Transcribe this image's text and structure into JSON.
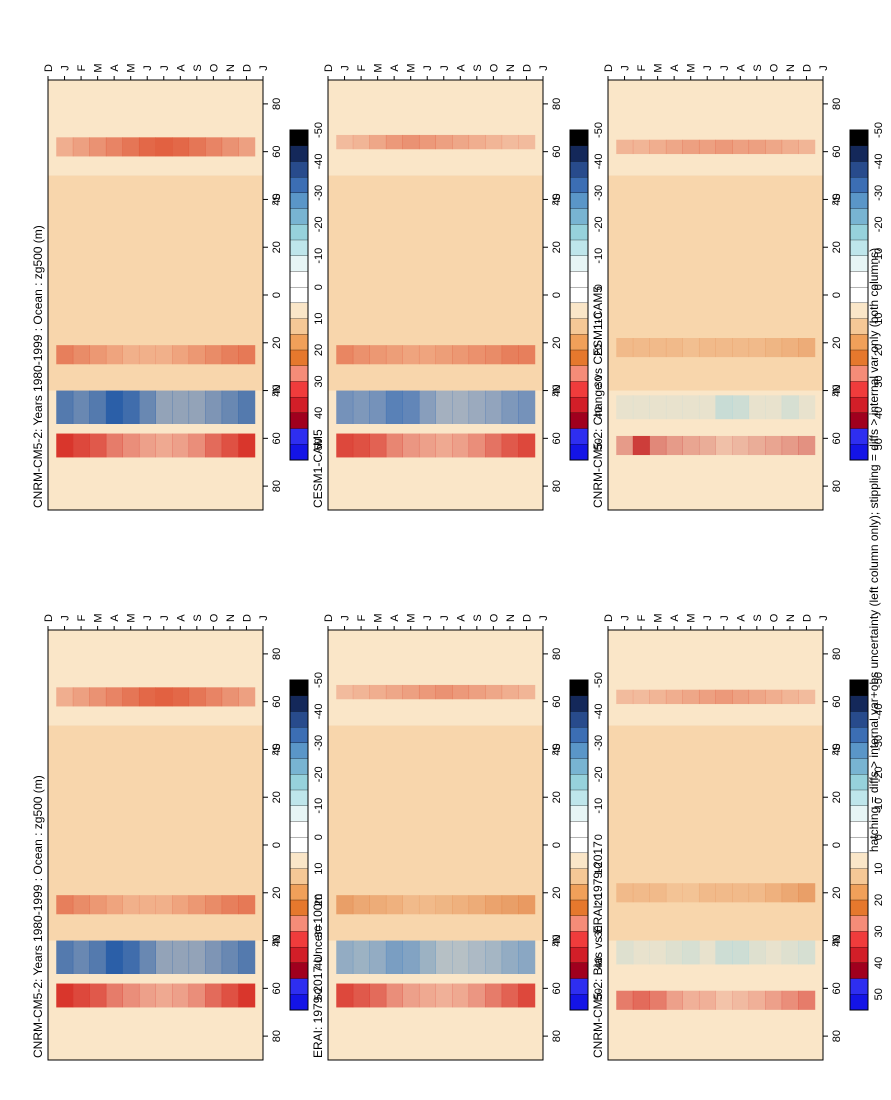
{
  "footnote": "hatching = diffs > internal var+obs uncertainty (left column only); stippling = diffs > internal var only (both columns)",
  "chart_data": {
    "type": "heatmap",
    "orientation_note_visible": "page is rotated 90 degrees; months run along the long axis",
    "months": [
      "D",
      "J",
      "F",
      "M",
      "A",
      "M",
      "J",
      "J",
      "A",
      "S",
      "O",
      "N",
      "D",
      "J"
    ],
    "lat_ticks": [
      "80",
      "60",
      "40",
      "20",
      "0",
      "20",
      "40",
      "60",
      "80"
    ],
    "lat_hemisphere_labels": [
      "°N",
      "°S"
    ],
    "colorbar_labels": [
      "50",
      "40",
      "30",
      "20",
      "10",
      "0",
      "-10",
      "-20",
      "-30",
      "-40",
      "-50"
    ],
    "colorbar_colors": [
      "#1414e6",
      "#2e2ef0",
      "#a0001e",
      "#d21e28",
      "#f03c3c",
      "#f58c78",
      "#e6782d",
      "#f0a05a",
      "#f5c896",
      "#fae6c8",
      "#ffffff",
      "#ffffff",
      "#e6f5f5",
      "#bee6eb",
      "#96d2dc",
      "#78b4d2",
      "#5a96c8",
      "#3c6eb4",
      "#284b8c",
      "#14285a",
      "#000000"
    ],
    "panels": [
      {
        "id": "left-top",
        "title": "CNRM-CM5-2: Years 1980-1999 : Ocean : zg500 (m)",
        "bands": [
          {
            "lat": 63,
            "width": 10,
            "color": "#d9362c",
            "strength": [
              1,
              0.9,
              0.8,
              0.6,
              0.5,
              0.4,
              0.35,
              0.4,
              0.5,
              0.7,
              0.85,
              1
            ]
          },
          {
            "lat": 47,
            "width": 14,
            "color": "#2b5fa8",
            "strength": [
              0.8,
              0.7,
              0.8,
              1,
              0.9,
              0.7,
              0.5,
              0.5,
              0.5,
              0.6,
              0.7,
              0.8
            ]
          },
          {
            "lat": 25,
            "width": 8,
            "color": "#e05a3a",
            "strength": [
              0.7,
              0.6,
              0.5,
              0.4,
              0.3,
              0.3,
              0.3,
              0.4,
              0.5,
              0.6,
              0.7,
              0.75
            ]
          },
          {
            "lat": -62,
            "width": 8,
            "color": "#e05a3a",
            "strength": [
              0.4,
              0.5,
              0.6,
              0.7,
              0.8,
              0.9,
              0.95,
              0.9,
              0.8,
              0.7,
              0.6,
              0.5
            ]
          }
        ]
      },
      {
        "id": "left-middle",
        "title": "ERAI: 1979-2017 Uncer=100m",
        "bands": [
          {
            "lat": 63,
            "width": 10,
            "color": "#d9362c",
            "strength": [
              0.9,
              0.8,
              0.7,
              0.5,
              0.4,
              0.35,
              0.3,
              0.35,
              0.45,
              0.6,
              0.75,
              0.9
            ]
          },
          {
            "lat": 47,
            "width": 14,
            "color": "#4f86c0",
            "strength": [
              0.6,
              0.55,
              0.6,
              0.75,
              0.7,
              0.55,
              0.4,
              0.4,
              0.45,
              0.5,
              0.6,
              0.65
            ]
          },
          {
            "lat": 25,
            "width": 8,
            "color": "#e07a3a",
            "strength": [
              0.6,
              0.5,
              0.45,
              0.4,
              0.3,
              0.3,
              0.35,
              0.4,
              0.45,
              0.55,
              0.6,
              0.65
            ]
          },
          {
            "lat": -64,
            "width": 6,
            "color": "#e05a3a",
            "strength": [
              0.3,
              0.35,
              0.4,
              0.45,
              0.5,
              0.55,
              0.6,
              0.55,
              0.5,
              0.45,
              0.4,
              0.35
            ]
          }
        ]
      },
      {
        "id": "left-bottom",
        "title": "CNRM-CM5-2: Bias vs ERAI: 1979-2017",
        "bands": [
          {
            "lat": 65,
            "width": 8,
            "color": "#d9362c",
            "strength": [
              0.6,
              0.7,
              0.6,
              0.4,
              0.3,
              0.3,
              0.2,
              0.25,
              0.3,
              0.4,
              0.5,
              0.6
            ]
          },
          {
            "lat": 45,
            "width": 10,
            "color": "#9fd4e0",
            "strength": [
              0.3,
              0.2,
              0.2,
              0.3,
              0.4,
              0.2,
              0.5,
              0.5,
              0.3,
              0.2,
              0.3,
              0.4
            ]
          },
          {
            "lat": 20,
            "width": 8,
            "color": "#e07a3a",
            "strength": [
              0.3,
              0.3,
              0.3,
              0.2,
              0.2,
              0.3,
              0.3,
              0.3,
              0.3,
              0.4,
              0.5,
              0.6
            ]
          },
          {
            "lat": -62,
            "width": 6,
            "color": "#e05a3a",
            "strength": [
              0.3,
              0.3,
              0.35,
              0.4,
              0.45,
              0.5,
              0.55,
              0.5,
              0.45,
              0.4,
              0.35,
              0.3
            ]
          }
        ]
      },
      {
        "id": "right-top",
        "title": "CNRM-CM5-2: Years 1980-1999 : Ocean : zg500 (m)",
        "bands": [
          {
            "lat": 63,
            "width": 10,
            "color": "#d9362c",
            "strength": [
              1,
              0.9,
              0.8,
              0.6,
              0.5,
              0.4,
              0.35,
              0.4,
              0.5,
              0.7,
              0.85,
              1
            ]
          },
          {
            "lat": 47,
            "width": 14,
            "color": "#2b5fa8",
            "strength": [
              0.8,
              0.7,
              0.8,
              1,
              0.9,
              0.7,
              0.5,
              0.5,
              0.5,
              0.6,
              0.7,
              0.8
            ]
          },
          {
            "lat": 25,
            "width": 8,
            "color": "#e05a3a",
            "strength": [
              0.7,
              0.6,
              0.5,
              0.4,
              0.3,
              0.3,
              0.3,
              0.4,
              0.5,
              0.6,
              0.7,
              0.75
            ]
          },
          {
            "lat": -62,
            "width": 8,
            "color": "#e05a3a",
            "strength": [
              0.4,
              0.5,
              0.6,
              0.7,
              0.8,
              0.9,
              0.95,
              0.9,
              0.8,
              0.7,
              0.6,
              0.5
            ]
          }
        ]
      },
      {
        "id": "right-middle",
        "title": "CESM1-CAM5",
        "bands": [
          {
            "lat": 63,
            "width": 10,
            "color": "#d9362c",
            "strength": [
              0.9,
              0.85,
              0.75,
              0.55,
              0.45,
              0.4,
              0.35,
              0.4,
              0.5,
              0.65,
              0.8,
              0.9
            ]
          },
          {
            "lat": 47,
            "width": 14,
            "color": "#3c6eb4",
            "strength": [
              0.7,
              0.65,
              0.7,
              0.85,
              0.8,
              0.6,
              0.45,
              0.45,
              0.5,
              0.55,
              0.65,
              0.7
            ]
          },
          {
            "lat": 25,
            "width": 8,
            "color": "#e05a3a",
            "strength": [
              0.65,
              0.55,
              0.5,
              0.45,
              0.4,
              0.4,
              0.45,
              0.5,
              0.55,
              0.6,
              0.7,
              0.7
            ]
          },
          {
            "lat": -64,
            "width": 6,
            "color": "#e05a3a",
            "strength": [
              0.3,
              0.35,
              0.45,
              0.55,
              0.6,
              0.55,
              0.5,
              0.45,
              0.4,
              0.35,
              0.3,
              0.3
            ]
          }
        ]
      },
      {
        "id": "right-bottom",
        "title": "CNRM-CM5-2: Change vs CESM1-CAM5",
        "bands": [
          {
            "lat": 63,
            "width": 8,
            "color": "#c82a2a",
            "strength": [
              0.4,
              0.9,
              0.5,
              0.4,
              0.35,
              0.3,
              0.2,
              0.25,
              0.3,
              0.35,
              0.4,
              0.45
            ]
          },
          {
            "lat": 47,
            "width": 10,
            "color": "#9fd4e0",
            "strength": [
              0.2,
              0.2,
              0.2,
              0.2,
              0.2,
              0.2,
              0.55,
              0.5,
              0.2,
              0.2,
              0.4,
              0.2
            ]
          },
          {
            "lat": 22,
            "width": 8,
            "color": "#e07a3a",
            "strength": [
              0.3,
              0.3,
              0.3,
              0.3,
              0.25,
              0.3,
              0.3,
              0.3,
              0.3,
              0.35,
              0.4,
              0.45
            ]
          },
          {
            "lat": -62,
            "width": 6,
            "color": "#e05a3a",
            "strength": [
              0.35,
              0.35,
              0.4,
              0.45,
              0.5,
              0.5,
              0.55,
              0.5,
              0.5,
              0.45,
              0.4,
              0.35
            ]
          }
        ]
      }
    ]
  }
}
